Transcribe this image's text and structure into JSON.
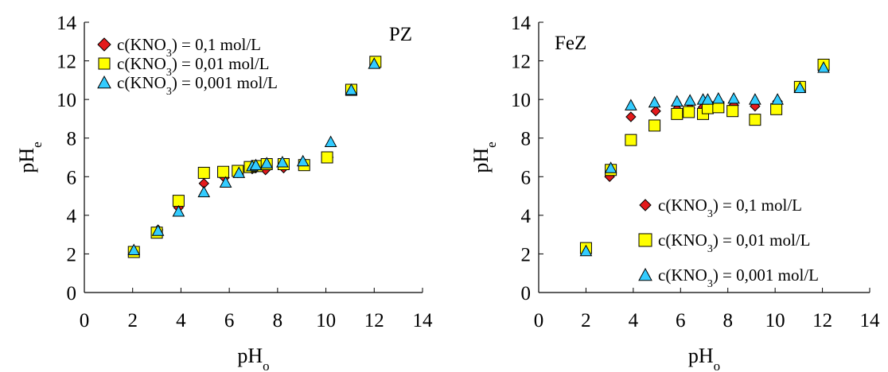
{
  "chart_data": [
    {
      "type": "scatter",
      "panel_label": "PZ",
      "xlabel": "pH",
      "xlabel_sub": "o",
      "ylabel": "pH",
      "ylabel_sub": "e",
      "xlim": [
        0,
        14
      ],
      "ylim": [
        0,
        14
      ],
      "xticks": [
        "0",
        "2",
        "4",
        "6",
        "8",
        "10",
        "12",
        "14"
      ],
      "yticks": [
        "0",
        "2",
        "4",
        "6",
        "8",
        "10",
        "12",
        "14"
      ],
      "grid": false,
      "legend_placement": "top-left",
      "series": [
        {
          "name_main": "c(KNO",
          "name_sub": "3",
          "name_rest": ") = 0,1 mol/L",
          "marker": "diamond",
          "color": "#e41a1c",
          "points": [
            [
              2.05,
              2.15
            ],
            [
              3.05,
              3.25
            ],
            [
              3.9,
              4.4
            ],
            [
              4.95,
              5.65
            ],
            [
              5.8,
              5.95
            ],
            [
              6.35,
              6.2
            ],
            [
              6.95,
              6.4
            ],
            [
              7.1,
              6.45
            ],
            [
              7.5,
              6.35
            ],
            [
              8.25,
              6.45
            ],
            [
              9.1,
              6.7
            ],
            [
              10.1,
              7.0
            ],
            [
              11.05,
              10.5
            ],
            [
              12.05,
              11.95
            ]
          ]
        },
        {
          "name_main": "c(KNO",
          "name_sub": "3",
          "name_rest": ") = 0,01 mol/L",
          "marker": "square",
          "color": "#ffff00",
          "points": [
            [
              2.05,
              2.1
            ],
            [
              3.0,
              3.1
            ],
            [
              3.9,
              4.75
            ],
            [
              4.95,
              6.2
            ],
            [
              5.75,
              6.25
            ],
            [
              6.35,
              6.3
            ],
            [
              6.85,
              6.5
            ],
            [
              7.15,
              6.55
            ],
            [
              7.55,
              6.65
            ],
            [
              8.25,
              6.65
            ],
            [
              9.1,
              6.6
            ],
            [
              10.05,
              7.0
            ],
            [
              11.05,
              10.5
            ],
            [
              12.05,
              11.95
            ]
          ]
        },
        {
          "name_main": "c(KNO",
          "name_sub": "3",
          "name_rest": ") = 0,001 mol/L",
          "marker": "triangle",
          "color": "#33ccff",
          "points": [
            [
              2.05,
              2.2
            ],
            [
              3.05,
              3.2
            ],
            [
              3.9,
              4.2
            ],
            [
              4.95,
              5.2
            ],
            [
              5.85,
              5.7
            ],
            [
              6.4,
              6.2
            ],
            [
              6.95,
              6.55
            ],
            [
              7.1,
              6.6
            ],
            [
              7.55,
              6.7
            ],
            [
              8.2,
              6.75
            ],
            [
              9.05,
              6.8
            ],
            [
              10.2,
              7.8
            ],
            [
              11.05,
              10.5
            ],
            [
              12.0,
              11.85
            ]
          ]
        }
      ]
    },
    {
      "type": "scatter",
      "panel_label": "FeZ",
      "xlabel": "pH",
      "xlabel_sub": "o",
      "ylabel": "pH",
      "ylabel_sub": "e",
      "xlim": [
        0,
        14
      ],
      "ylim": [
        0,
        14
      ],
      "xticks": [
        "0",
        "2",
        "4",
        "6",
        "8",
        "10",
        "12",
        "14"
      ],
      "yticks": [
        "0",
        "2",
        "4",
        "6",
        "8",
        "10",
        "12",
        "14"
      ],
      "grid": false,
      "legend_placement": "bottom-right",
      "series": [
        {
          "name_main": "c(KNO",
          "name_sub": "3",
          "name_rest": ") = 0,1 mol/L",
          "marker": "diamond",
          "color": "#e41a1c",
          "points": [
            [
              2.0,
              2.3
            ],
            [
              3.0,
              6.0
            ],
            [
              3.9,
              9.1
            ],
            [
              4.95,
              9.4
            ],
            [
              5.85,
              9.5
            ],
            [
              6.4,
              9.55
            ],
            [
              6.95,
              9.6
            ],
            [
              7.1,
              9.6
            ],
            [
              7.55,
              9.65
            ],
            [
              8.25,
              9.7
            ],
            [
              9.15,
              9.65
            ],
            [
              10.1,
              9.9
            ],
            [
              11.05,
              10.6
            ],
            [
              12.05,
              11.75
            ]
          ]
        },
        {
          "name_main": "c(KNO",
          "name_sub": "3",
          "name_rest": ") = 0,01 mol/L",
          "marker": "square",
          "color": "#ffff00",
          "points": [
            [
              2.0,
              2.3
            ],
            [
              3.05,
              6.35
            ],
            [
              3.9,
              7.9
            ],
            [
              4.9,
              8.65
            ],
            [
              5.85,
              9.25
            ],
            [
              6.35,
              9.35
            ],
            [
              6.95,
              9.25
            ],
            [
              7.15,
              9.55
            ],
            [
              7.6,
              9.6
            ],
            [
              8.2,
              9.4
            ],
            [
              9.15,
              8.95
            ],
            [
              10.05,
              9.5
            ],
            [
              11.05,
              10.65
            ],
            [
              12.05,
              11.8
            ]
          ]
        },
        {
          "name_main": "c(KNO",
          "name_sub": "3",
          "name_rest": ") = 0,001 mol/L",
          "marker": "triangle",
          "color": "#33ccff",
          "points": [
            [
              2.0,
              2.15
            ],
            [
              3.05,
              6.45
            ],
            [
              3.9,
              9.7
            ],
            [
              4.9,
              9.85
            ],
            [
              5.85,
              9.9
            ],
            [
              6.4,
              9.95
            ],
            [
              6.95,
              10.0
            ],
            [
              7.15,
              10.0
            ],
            [
              7.6,
              10.05
            ],
            [
              8.25,
              10.05
            ],
            [
              9.15,
              10.0
            ],
            [
              10.1,
              10.0
            ],
            [
              11.05,
              10.6
            ],
            [
              12.05,
              11.65
            ]
          ]
        }
      ]
    }
  ]
}
